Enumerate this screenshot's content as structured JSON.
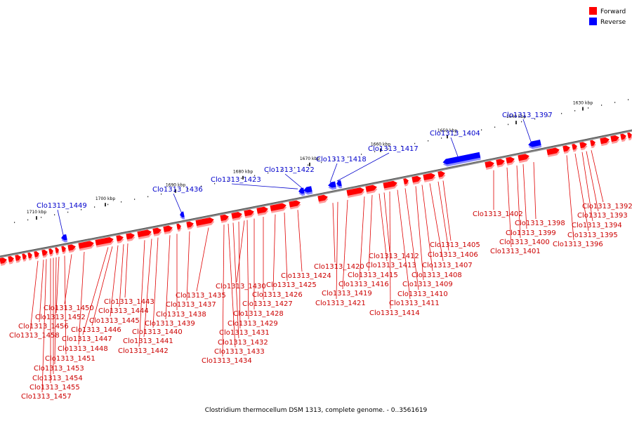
{
  "legend": {
    "forward_label": "Forward",
    "reverse_label": "Reverse",
    "forward_color": "#ff0000",
    "reverse_color": "#0000ff"
  },
  "caption": "Clostridium thermocellum DSM 1313, complete genome. - 0..3561619",
  "ticks": [
    "1630 kbp",
    "1640 kbp",
    "1650 kbp",
    "1660 kbp",
    "1670 kbp",
    "1680 kbp",
    "1690 kbp",
    "1700 kbp",
    "1710 kbp"
  ],
  "forward_genes": [
    "Clo1313_1392",
    "Clo1313_1393",
    "Clo1313_1394",
    "Clo1313_1395",
    "Clo1313_1396",
    "Clo1313_1398",
    "Clo1313_1399",
    "Clo1313_1400",
    "Clo1313_1401",
    "Clo1313_1402",
    "Clo1313_1405",
    "Clo1313_1406",
    "Clo1313_1407",
    "Clo1313_1408",
    "Clo1313_1409",
    "Clo1313_1410",
    "Clo1313_1411",
    "Clo1313_1412",
    "Clo1313_1413",
    "Clo1313_1414",
    "Clo1313_1415",
    "Clo1313_1416",
    "Clo1313_1419",
    "Clo1313_1420",
    "Clo1313_1421",
    "Clo1313_1424",
    "Clo1313_1425",
    "Clo1313_1426",
    "Clo1313_1427",
    "Clo1313_1428",
    "Clo1313_1429",
    "Clo1313_1430",
    "Clo1313_1431",
    "Clo1313_1432",
    "Clo1313_1433",
    "Clo1313_1434",
    "Clo1313_1435",
    "Clo1313_1437",
    "Clo1313_1438",
    "Clo1313_1439",
    "Clo1313_1440",
    "Clo1313_1441",
    "Clo1313_1442",
    "Clo1313_1443",
    "Clo1313_1444",
    "Clo1313_1445",
    "Clo1313_1446",
    "Clo1313_1447",
    "Clo1313_1448",
    "Clo1313_1450",
    "Clo1313_1451",
    "Clo1313_1452",
    "Clo1313_1453",
    "Clo1313_1454",
    "Clo1313_1455",
    "Clo1313_1456",
    "Clo1313_1457",
    "Clo1313_1458"
  ],
  "reverse_genes": [
    "Clo1313_1397",
    "Clo1313_1404",
    "Clo1313_1417",
    "Clo1313_1418",
    "Clo1313_1422",
    "Clo1313_1423",
    "Clo1313_1436",
    "Clo1313_1449"
  ]
}
